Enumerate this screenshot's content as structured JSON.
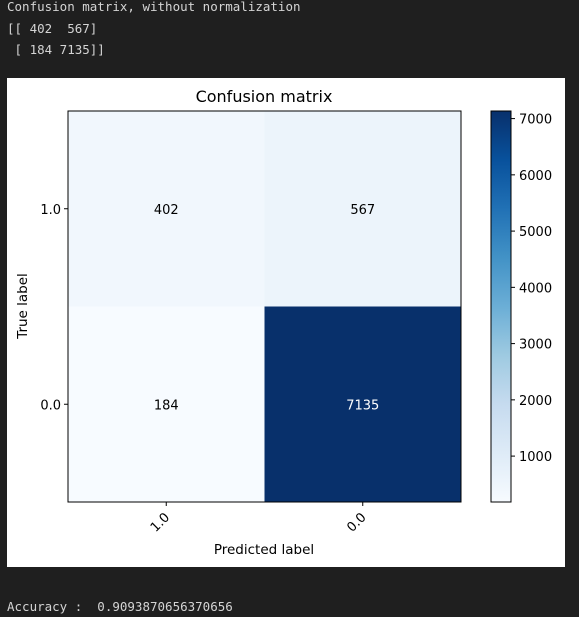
{
  "output": {
    "header_line": "Confusion matrix, without normalization",
    "matrix_line_1": "[[ 402  567]",
    "matrix_line_2": " [ 184 7135]]",
    "accuracy_line": "Accuracy :  0.9093870656370656"
  },
  "chart_data": {
    "type": "heatmap",
    "title": "Confusion matrix",
    "xlabel": "Predicted label",
    "ylabel": "True label",
    "x_categories": [
      "1.0",
      "0.0"
    ],
    "y_categories": [
      "1.0",
      "0.0"
    ],
    "values": [
      [
        402,
        567
      ],
      [
        184,
        7135
      ]
    ],
    "colormap": "Blues",
    "color_range": [
      184,
      7135
    ],
    "colorbar_ticks": [
      1000,
      2000,
      3000,
      4000,
      5000,
      6000,
      7000
    ],
    "x_tick_rotation": 45
  }
}
